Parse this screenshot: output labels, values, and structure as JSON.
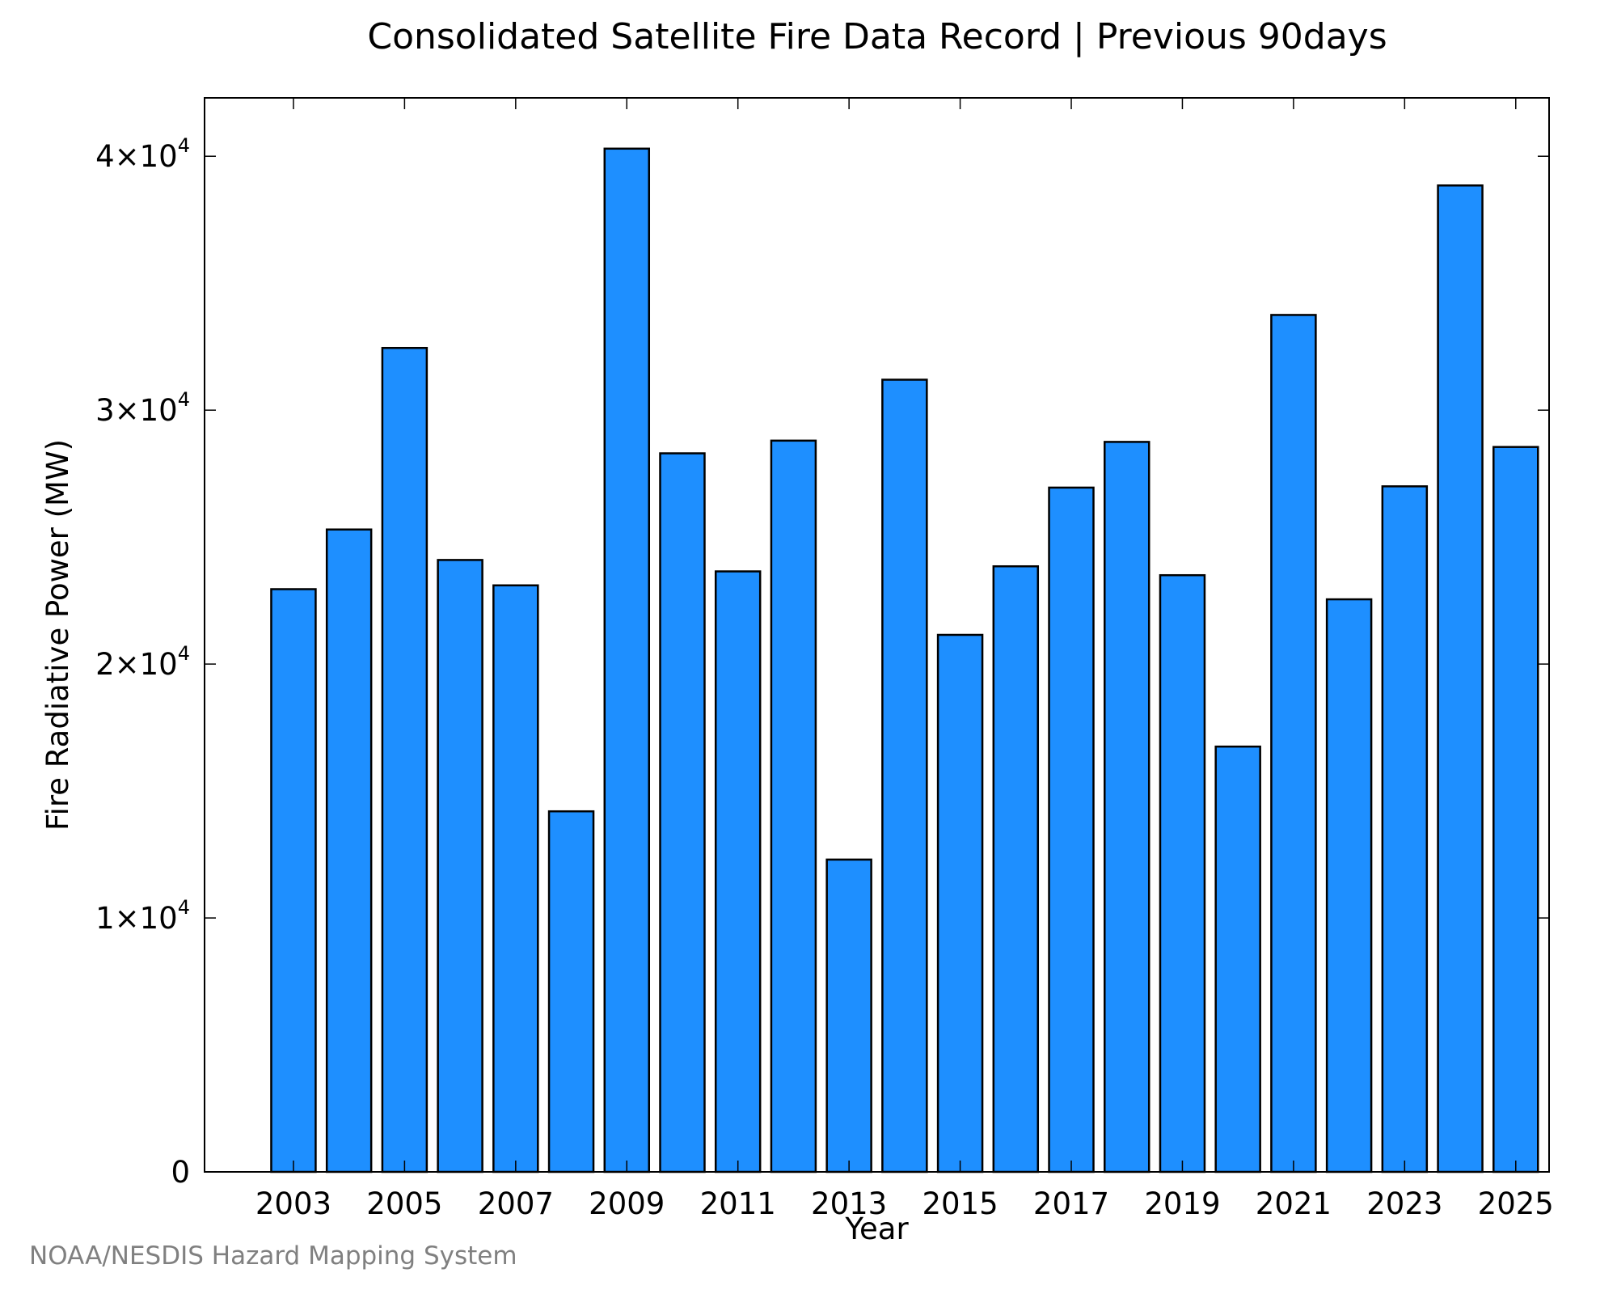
{
  "chart_data": {
    "type": "bar",
    "title": "Consolidated Satellite Fire Data Record | Previous 90days",
    "xlabel": "Year",
    "ylabel": "Fire Radiative Power (MW)",
    "ylim": [
      0,
      42300
    ],
    "xlim": [
      2001.4,
      2025.6
    ],
    "grid": false,
    "bar_color": "#1E8FFF",
    "edge_color": "#000000",
    "categories": [
      2003,
      2004,
      2005,
      2006,
      2007,
      2008,
      2009,
      2010,
      2011,
      2012,
      2013,
      2014,
      2015,
      2016,
      2017,
      2018,
      2019,
      2020,
      2021,
      2022,
      2023,
      2024,
      2025
    ],
    "values": [
      22950,
      25300,
      32450,
      24100,
      23100,
      14200,
      40300,
      28300,
      23650,
      28800,
      12300,
      31200,
      21150,
      23850,
      26950,
      28750,
      23500,
      16750,
      33750,
      22550,
      27000,
      38850,
      28550
    ],
    "x_ticks": [
      2003,
      2005,
      2007,
      2009,
      2011,
      2013,
      2015,
      2017,
      2019,
      2021,
      2023,
      2025
    ],
    "y_ticks": [
      {
        "value": 0,
        "mant": "0",
        "exp": ""
      },
      {
        "value": 10000,
        "mant": "1×10",
        "exp": "4"
      },
      {
        "value": 20000,
        "mant": "2×10",
        "exp": "4"
      },
      {
        "value": 30000,
        "mant": "3×10",
        "exp": "4"
      },
      {
        "value": 40000,
        "mant": "4×10",
        "exp": "4"
      }
    ]
  },
  "credit": "NOAA/NESDIS Hazard Mapping System"
}
